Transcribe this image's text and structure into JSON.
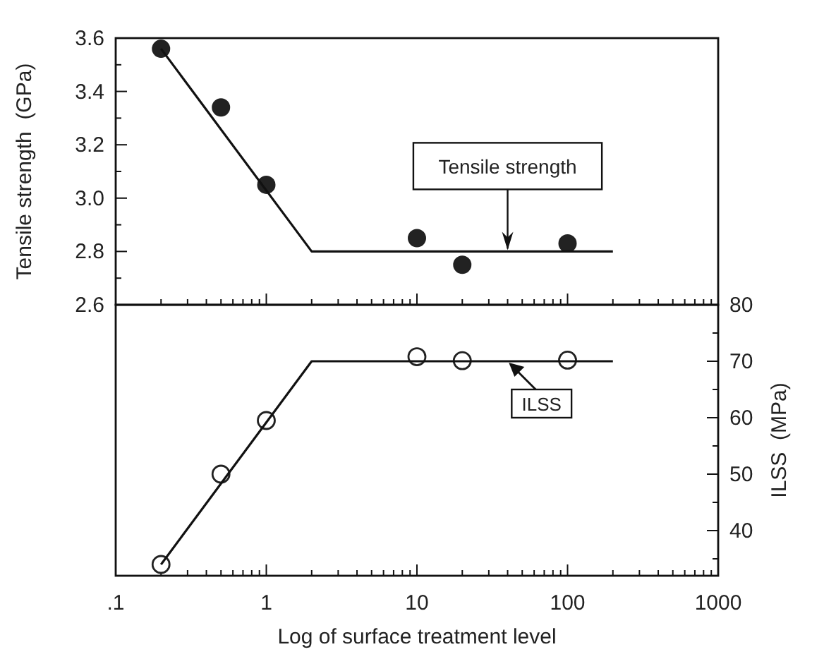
{
  "chart_data": [
    {
      "type": "scatter",
      "ylabel": "Tensile strength  (GPa)",
      "log": "x",
      "xlim": [
        0.1,
        1000
      ],
      "xticks": [
        {
          "value": 0.1,
          "label": null
        },
        {
          "value": 1,
          "label": null
        },
        {
          "value": 10,
          "label": null
        },
        {
          "value": 100,
          "label": null
        },
        {
          "value": 1000,
          "label": null
        }
      ],
      "ylim": [
        2.6,
        3.6
      ],
      "yticks": [
        2.6,
        {
          "value": 2.7,
          "label": null
        },
        2.8,
        {
          "value": 2.9,
          "label": null
        },
        {
          "value": 3.0,
          "label": "3.0"
        },
        {
          "value": 3.1,
          "label": null
        },
        3.2,
        {
          "value": 3.3,
          "label": null
        },
        3.4,
        {
          "value": 3.5,
          "label": null
        },
        3.6
      ],
      "tick_labels": "y",
      "grid": false,
      "series": [
        {
          "type": "scatter",
          "marker": "circle",
          "color": "#222222",
          "x": [
            0.2,
            0.5,
            1,
            10,
            20,
            100
          ],
          "values": [
            3.56,
            3.34,
            3.05,
            2.85,
            2.75,
            2.83
          ]
        },
        {
          "type": "line",
          "marker": "none",
          "color": "#111111",
          "x": [
            0.2,
            2,
            200
          ],
          "values": [
            3.56,
            2.8,
            2.8
          ]
        }
      ],
      "annotations": [
        {
          "text": "Tensile strength",
          "x": 40,
          "y": 2.8
        }
      ]
    },
    {
      "type": "scatter",
      "xlabel": "Log of surface treatment level",
      "y2label": "ILSS  (MPa)",
      "log": "x",
      "xlim": [
        0.1,
        1000
      ],
      "xticks": [
        {
          "value": 0.1,
          "label": ".1"
        },
        1,
        10,
        100,
        1000
      ],
      "y2lim": [
        32,
        80
      ],
      "y2ticks": [
        {
          "value": 35,
          "label": null
        },
        40,
        {
          "value": 45,
          "label": null
        },
        50,
        {
          "value": 55,
          "label": null
        },
        60,
        {
          "value": 65,
          "label": null
        },
        70,
        {
          "value": 75,
          "label": null
        },
        80
      ],
      "grid": false,
      "series": [
        {
          "type": "scatter",
          "axis": "y2",
          "marker": "circle",
          "color": "#222222",
          "x": [
            0.2,
            0.5,
            1,
            10,
            20,
            100
          ],
          "values": [
            34,
            50,
            59.5,
            70.8,
            70.1,
            70.2
          ]
        },
        {
          "type": "line",
          "axis": "y2",
          "marker": "none",
          "color": "#111111",
          "x": [
            0.2,
            2,
            200
          ],
          "values": [
            34,
            70,
            70
          ]
        }
      ],
      "annotations": [
        "ILSS"
      ]
    }
  ]
}
